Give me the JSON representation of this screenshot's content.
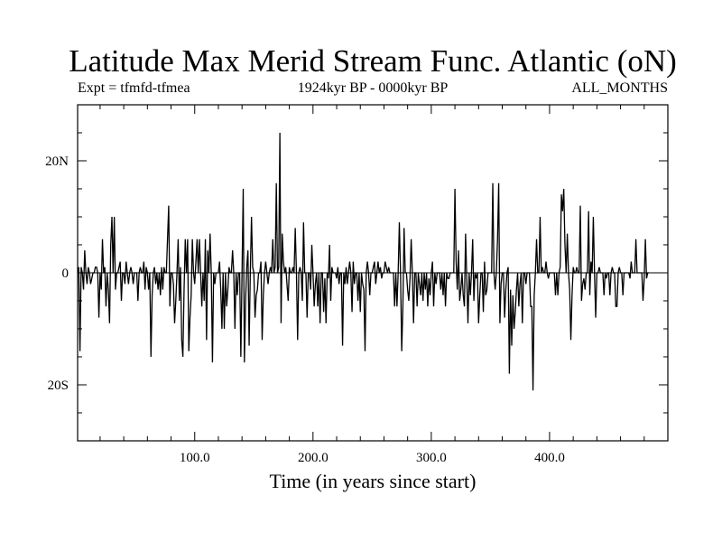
{
  "chart_data": {
    "type": "line",
    "title": "Latitude Max Merid Stream Func. Atlantic (oN)",
    "subtitle_left": "Expt = tfmfd-tfmea",
    "subtitle_center": "1924kyr BP - 0000kyr BP",
    "subtitle_right": "ALL_MONTHS",
    "xlabel": "Time (in years since start)",
    "ylabel": "",
    "xlim": [
      1,
      500
    ],
    "ylim": [
      -30,
      30
    ],
    "x_ticks": [
      {
        "value": 100,
        "label": "100.0"
      },
      {
        "value": 200,
        "label": "200.0"
      },
      {
        "value": 300,
        "label": "300.0"
      },
      {
        "value": 400,
        "label": "400.0"
      }
    ],
    "y_ticks": [
      {
        "value": 20,
        "label": "20N"
      },
      {
        "value": 0,
        "label": "0"
      },
      {
        "value": -20,
        "label": "20S"
      }
    ],
    "grid": false,
    "x_start": 1,
    "series": [
      {
        "color": "#000000",
        "values": [
          0,
          1,
          -14,
          1,
          0,
          -3,
          4,
          0,
          -2,
          1,
          0,
          -2,
          -1,
          0,
          0,
          1,
          1,
          0,
          -8,
          0,
          -3,
          6,
          0,
          1,
          -6,
          0,
          -3,
          -9,
          5,
          10,
          0,
          10,
          -3,
          0,
          0,
          1,
          2,
          -5,
          0,
          0,
          -2,
          2,
          0,
          -2,
          0,
          1,
          0,
          -2,
          0,
          0,
          0,
          -5,
          0,
          1,
          0,
          0,
          2,
          -3,
          1,
          0,
          -3,
          0,
          -15,
          -4,
          0,
          1,
          -2,
          0,
          -3,
          0,
          -4,
          1,
          -3,
          1,
          0,
          0,
          6,
          12,
          -6,
          0,
          0,
          -2,
          -9,
          -5,
          0,
          6,
          -5,
          1,
          -12,
          -15,
          -3,
          6,
          0,
          6,
          -14,
          -8,
          -4,
          6,
          0,
          -2,
          2,
          6,
          0,
          6,
          0,
          -6,
          0,
          -5,
          6,
          -12,
          4,
          0,
          7,
          0,
          -16,
          0,
          -2,
          0,
          0,
          0,
          2,
          -3,
          -10,
          0,
          -10,
          0,
          -6,
          -3,
          1,
          0,
          0,
          4,
          0,
          -10,
          0,
          -4,
          0,
          0,
          -15,
          0,
          15,
          -16,
          -5,
          1,
          4,
          -13,
          0,
          10,
          1,
          0,
          -8,
          -4,
          -3,
          0,
          0,
          2,
          -12,
          -4,
          0,
          2,
          0,
          -2,
          0,
          1,
          0,
          6,
          0,
          1,
          16,
          0,
          1,
          25,
          -9,
          7,
          2,
          0,
          1,
          -2,
          -5,
          1,
          0,
          0,
          1,
          0,
          8,
          0,
          -12,
          0,
          1,
          0,
          -5,
          9,
          0,
          0,
          -8,
          0,
          0,
          -3,
          5,
          0,
          -6,
          -2,
          0,
          -6,
          0,
          -9,
          0,
          0,
          -7,
          -1,
          -9,
          0,
          -1,
          5,
          -5,
          1,
          0,
          0,
          0,
          -1,
          1,
          -2,
          0,
          0,
          -13,
          0,
          -2,
          1,
          -2,
          0,
          2,
          0,
          -7,
          2,
          -2,
          0,
          0,
          -5,
          0,
          -7,
          0,
          -2,
          -3,
          -14,
          0,
          2,
          0,
          -4,
          0,
          0,
          1,
          2,
          -2,
          0,
          2,
          0,
          1,
          -1,
          0,
          0,
          2,
          1,
          0,
          1,
          0,
          0,
          0,
          0,
          -6,
          0,
          -6,
          0,
          9,
          0,
          -14,
          -6,
          8,
          0,
          0,
          -3,
          -5,
          -1,
          6,
          0,
          -9,
          0,
          0,
          -6,
          0,
          -2,
          -4,
          0,
          -5,
          0,
          -3,
          0,
          -6,
          -1,
          -4,
          0,
          2,
          -6,
          0,
          -2,
          0,
          0,
          0,
          -3,
          0,
          -4,
          0,
          -6,
          0,
          -1,
          -1,
          0,
          0,
          0,
          0,
          15,
          2,
          -3,
          4,
          -5,
          -3,
          0,
          -4,
          -6,
          7,
          -1,
          -9,
          0,
          -4,
          0,
          6,
          -5,
          0,
          -1,
          0,
          -9,
          -4,
          0,
          0,
          -7,
          2,
          -4,
          -3,
          0,
          0,
          0,
          0,
          16,
          0,
          -3,
          0,
          6,
          16,
          -9,
          -2,
          0,
          0,
          -8,
          -3,
          0,
          1,
          -18,
          -3,
          -13,
          -4,
          -10,
          -7,
          -3,
          0,
          -6,
          -2,
          0,
          -9,
          0,
          0,
          -2,
          0,
          0,
          0,
          -6,
          -6,
          -21,
          -4,
          0,
          6,
          0,
          0,
          10,
          0,
          1,
          0,
          0,
          2,
          0,
          -1,
          0,
          0,
          0,
          0,
          0,
          -4,
          0,
          -4,
          0,
          1,
          14,
          11,
          15,
          5,
          0,
          7,
          0,
          -3,
          -12,
          -4,
          1,
          0,
          0,
          1,
          0,
          0,
          12,
          -5,
          -2,
          -1,
          -3,
          0,
          0,
          11,
          -4,
          2,
          0,
          10,
          0,
          -8,
          0,
          0,
          1,
          0,
          0,
          0,
          -4,
          0,
          -1,
          0,
          0,
          -4,
          0,
          1,
          0,
          0,
          -6,
          -6,
          0,
          1,
          0,
          0,
          -4,
          0,
          0,
          0,
          0,
          0,
          -1,
          2,
          0,
          0,
          0,
          6,
          0,
          0,
          0,
          0,
          0,
          -5,
          -1,
          6,
          -1,
          0,
          0
        ]
      }
    ]
  }
}
